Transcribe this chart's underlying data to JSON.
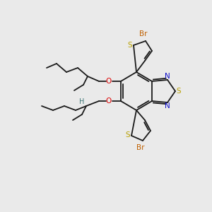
{
  "background_color": "#eaeaea",
  "bond_color": "#1a1a1a",
  "colors": {
    "S": "#b8a000",
    "N": "#1010c8",
    "O": "#dd0000",
    "Br": "#c06000",
    "H": "#407878",
    "C": "#1a1a1a"
  },
  "figsize": [
    3.0,
    3.0
  ],
  "dpi": 100
}
